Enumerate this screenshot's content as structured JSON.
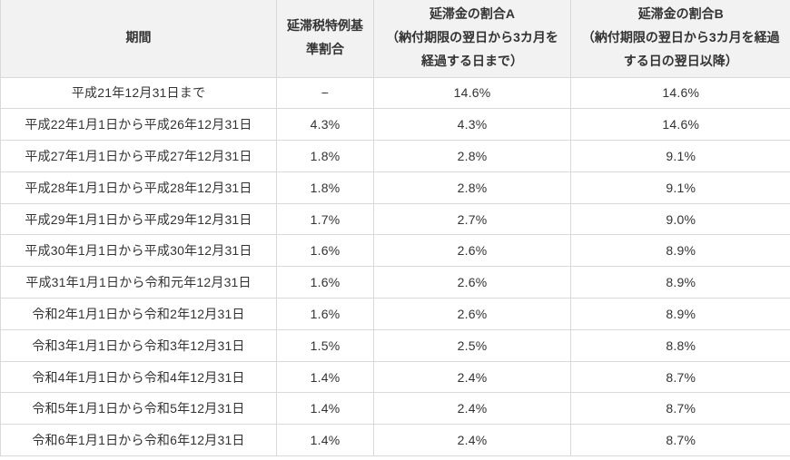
{
  "colors": {
    "header_bg": "#f2f2f2",
    "border": "#d9d9d9",
    "text": "#333333",
    "row_bg": "#ffffff"
  },
  "chart_data": {
    "type": "table",
    "title": "",
    "columns": [
      "期間",
      "延滞税特例基準割合",
      "延滞金の割合A\n（納付期限の翌日から3カ月を経過する日まで）",
      "延滞金の割合B\n（納付期限の翌日から3カ月を経過する日の翌日以降）"
    ],
    "rows": [
      [
        "平成21年12月31日まで",
        "−",
        "14.6%",
        "14.6%"
      ],
      [
        "平成22年1月1日から平成26年12月31日",
        "4.3%",
        "4.3%",
        "14.6%"
      ],
      [
        "平成27年1月1日から平成27年12月31日",
        "1.8%",
        "2.8%",
        "9.1%"
      ],
      [
        "平成28年1月1日から平成28年12月31日",
        "1.8%",
        "2.8%",
        "9.1%"
      ],
      [
        "平成29年1月1日から平成29年12月31日",
        "1.7%",
        "2.7%",
        "9.0%"
      ],
      [
        "平成30年1月1日から平成30年12月31日",
        "1.6%",
        "2.6%",
        "8.9%"
      ],
      [
        "平成31年1月1日から令和元年12月31日",
        "1.6%",
        "2.6%",
        "8.9%"
      ],
      [
        "令和2年1月1日から令和2年12月31日",
        "1.6%",
        "2.6%",
        "8.9%"
      ],
      [
        "令和3年1月1日から令和3年12月31日",
        "1.5%",
        "2.5%",
        "8.8%"
      ],
      [
        "令和4年1月1日から令和4年12月31日",
        "1.4%",
        "2.4%",
        "8.7%"
      ],
      [
        "令和5年1月1日から令和5年12月31日",
        "1.4%",
        "2.4%",
        "8.7%"
      ],
      [
        "令和6年1月1日から令和6年12月31日",
        "1.4%",
        "2.4%",
        "8.7%"
      ]
    ]
  }
}
